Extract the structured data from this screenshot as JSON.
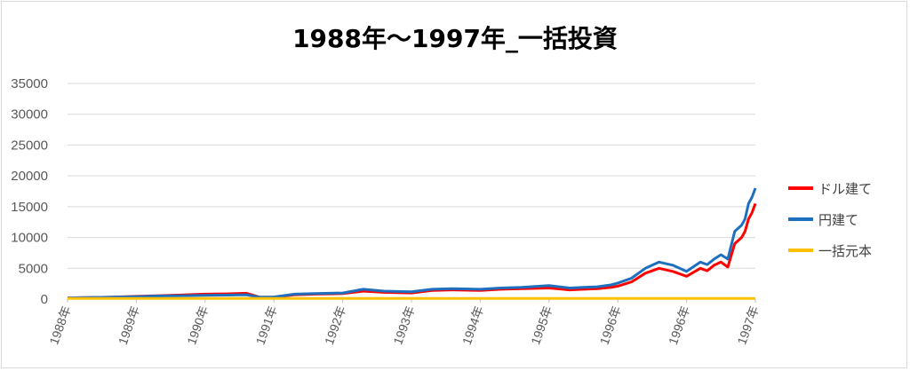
{
  "chart_data": {
    "type": "line",
    "title": "1988年～1997年_一括投資",
    "xlabel": "",
    "ylabel": "",
    "ylim": [
      0,
      35000
    ],
    "yticks": [
      "0",
      "5000",
      "10000",
      "15000",
      "20000",
      "25000",
      "30000",
      "35000"
    ],
    "x_tick_labels": [
      "1988年",
      "1989年",
      "1990年",
      "1991年",
      "1992年",
      "1993年",
      "1994年",
      "1995年",
      "1996年",
      "1996年",
      "1997年"
    ],
    "grid": true,
    "legend_position": "right",
    "series": [
      {
        "name": "ドル建て",
        "color": "#ff0000",
        "x": [
          0,
          0.3,
          0.6,
          1,
          1.3,
          1.6,
          2,
          2.3,
          2.6,
          2.8,
          3,
          3.3,
          3.6,
          4,
          4.3,
          4.6,
          5,
          5.3,
          5.6,
          6,
          6.3,
          6.6,
          7,
          7.3,
          7.5,
          7.7,
          7.9,
          8,
          8.2,
          8.4,
          8.6,
          8.8,
          9,
          9.2,
          9.3,
          9.4,
          9.5,
          9.6,
          9.7,
          9.8,
          9.85,
          9.9,
          9.95,
          10
        ],
        "values": [
          200,
          250,
          300,
          450,
          550,
          650,
          800,
          850,
          950,
          300,
          300,
          700,
          800,
          900,
          1300,
          1100,
          1000,
          1400,
          1500,
          1400,
          1600,
          1700,
          1800,
          1500,
          1600,
          1700,
          1900,
          2100,
          2800,
          4200,
          5000,
          4500,
          3700,
          5000,
          4600,
          5500,
          6000,
          5200,
          9000,
          10000,
          11000,
          13000,
          14000,
          15500
        ]
      },
      {
        "name": "円建て",
        "color": "#1f6fbf",
        "x": [
          0,
          0.3,
          0.6,
          1,
          1.3,
          1.6,
          2,
          2.3,
          2.6,
          2.8,
          3,
          3.3,
          3.6,
          4,
          4.3,
          4.6,
          5,
          5.3,
          5.6,
          6,
          6.3,
          6.6,
          7,
          7.3,
          7.5,
          7.7,
          7.9,
          8,
          8.2,
          8.4,
          8.6,
          8.8,
          9,
          9.2,
          9.3,
          9.4,
          9.5,
          9.6,
          9.7,
          9.8,
          9.85,
          9.9,
          9.95,
          10
        ],
        "values": [
          200,
          250,
          300,
          400,
          500,
          550,
          600,
          650,
          700,
          300,
          350,
          800,
          900,
          1000,
          1600,
          1300,
          1200,
          1600,
          1700,
          1600,
          1800,
          1900,
          2200,
          1800,
          1900,
          2000,
          2300,
          2600,
          3400,
          5000,
          6000,
          5500,
          4500,
          6000,
          5600,
          6500,
          7200,
          6500,
          11000,
          12000,
          13000,
          15500,
          16500,
          18000
        ]
      },
      {
        "name": "一括元本",
        "color": "#ffc000",
        "x": [
          0,
          10
        ],
        "values": [
          100,
          100
        ]
      }
    ]
  },
  "legend": {
    "items": [
      {
        "label": "ドル建て",
        "color": "#ff0000"
      },
      {
        "label": "円建て",
        "color": "#1f6fbf"
      },
      {
        "label": "一括元本",
        "color": "#ffc000"
      }
    ]
  }
}
